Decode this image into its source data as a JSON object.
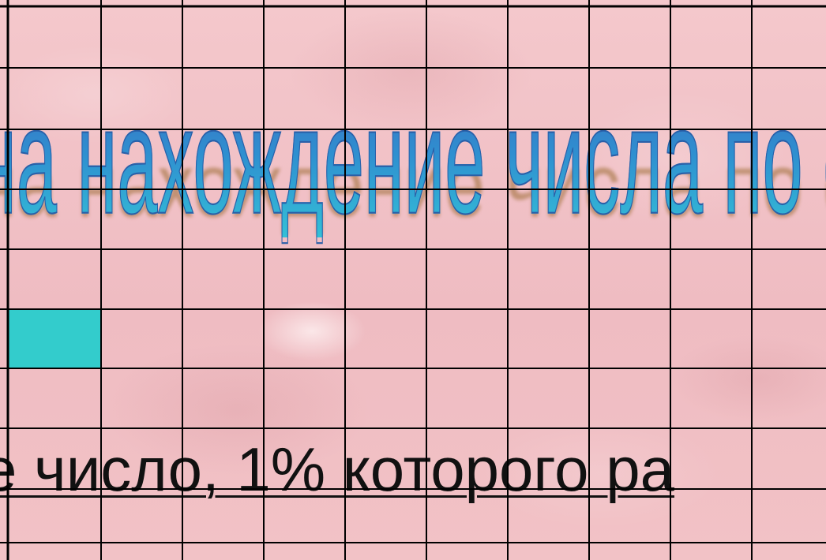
{
  "slide": {
    "title": "на нахождение числа по его процентам",
    "problem_text": "е число, 1% которого ра"
  },
  "colors": {
    "background": "#f2c4c8",
    "title_gradient_top": "#3b6fc0",
    "title_gradient_bottom": "#33c0d6",
    "title_shadow": "#9a6a30",
    "highlight_box": "#33cccc",
    "grid_lines": "#000000",
    "problem_text": "#111111"
  }
}
